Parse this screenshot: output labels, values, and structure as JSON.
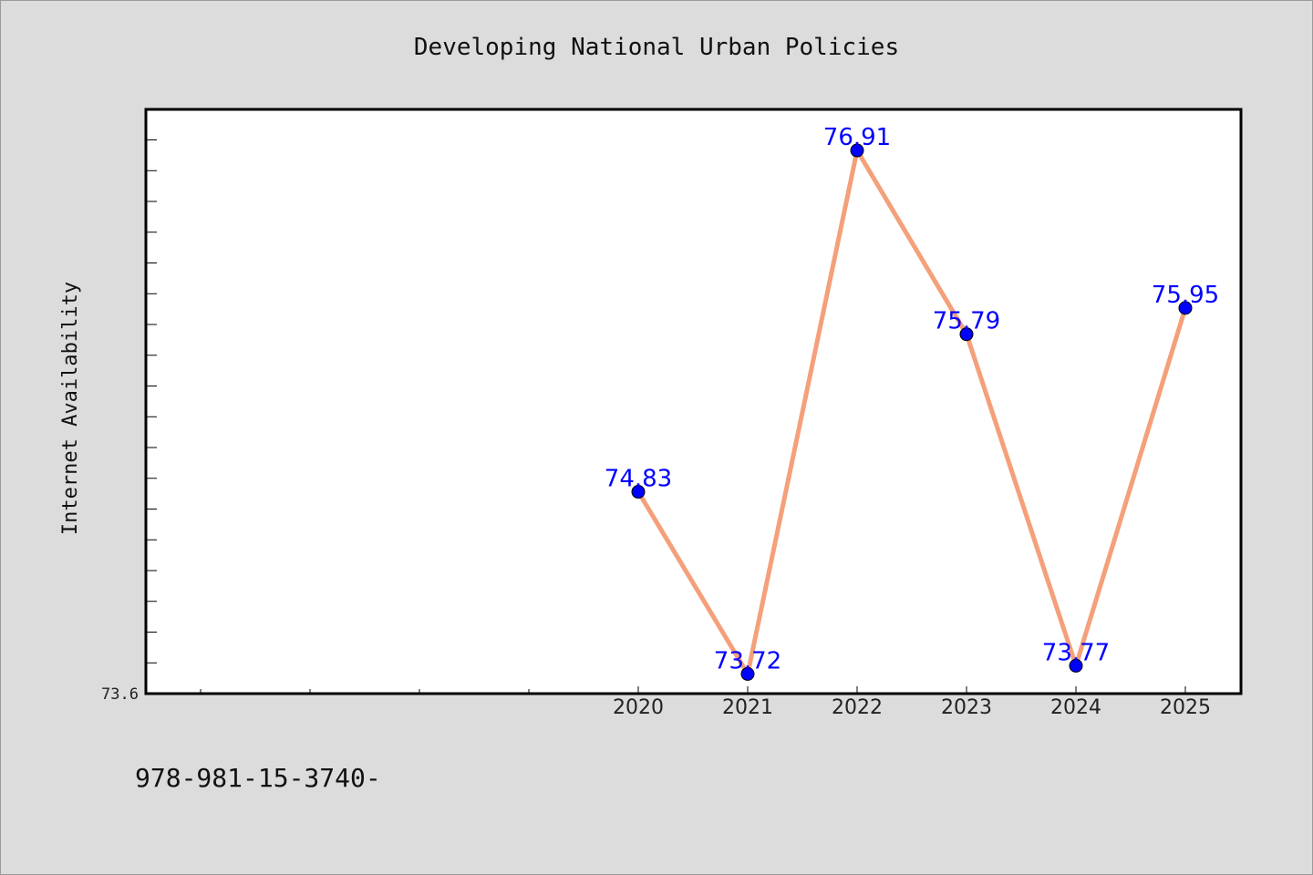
{
  "chart_data": {
    "type": "line",
    "title": "Developing National Urban Policies",
    "ylabel": "Internet Availability",
    "xlabel": "",
    "x": [
      "2020",
      "2021",
      "2022",
      "2023",
      "2024",
      "2025"
    ],
    "values": [
      74.83,
      73.72,
      76.91,
      75.79,
      73.77,
      75.95
    ],
    "data_labels": [
      "74.83",
      "73.72",
      "76.91",
      "75.79",
      "73.77",
      "75.95"
    ],
    "ytick_labels": [
      "73.6"
    ],
    "ylim": [
      73.6,
      77.16
    ],
    "x_slots": 10,
    "x_first_labeled_slot": 4,
    "line_color": "#f4a07a",
    "marker_color": "#0000ff",
    "grid": false,
    "legend": "none"
  },
  "footer": {
    "text": "978-981-15-3740-"
  }
}
